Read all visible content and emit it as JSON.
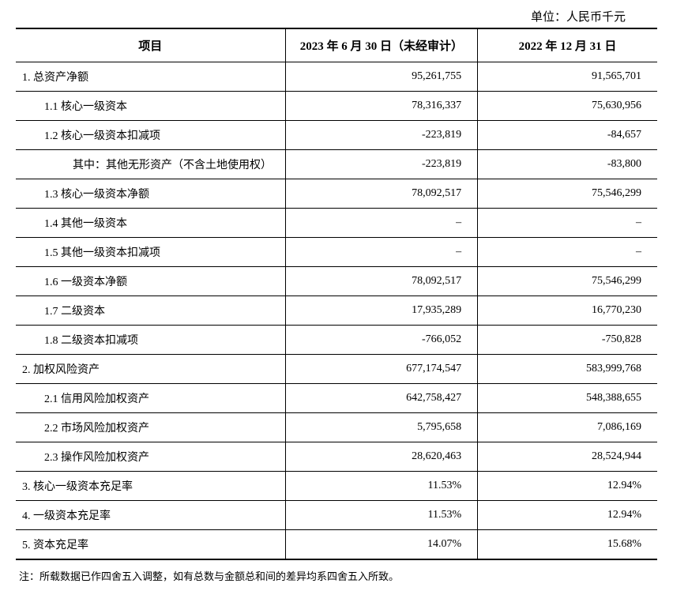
{
  "unit_label": "单位：人民币千元",
  "columns": {
    "item": "项目",
    "col_a": "2023 年 6 月 30 日（未经审计）",
    "col_b": "2022 年 12 月 31 日"
  },
  "rows": [
    {
      "label": "1. 总资产净额",
      "indent": 0,
      "a": "95,261,755",
      "b": "91,565,701"
    },
    {
      "label": "1.1 核心一级资本",
      "indent": 1,
      "a": "78,316,337",
      "b": "75,630,956"
    },
    {
      "label": "1.2 核心一级资本扣减项",
      "indent": 1,
      "a": "-223,819",
      "b": "-84,657"
    },
    {
      "label": "其中：其他无形资产（不含土地使用权）",
      "indent": 2,
      "a": "-223,819",
      "b": "-83,800"
    },
    {
      "label": "1.3 核心一级资本净额",
      "indent": 1,
      "a": "78,092,517",
      "b": "75,546,299"
    },
    {
      "label": "1.4 其他一级资本",
      "indent": 1,
      "a": "–",
      "b": "–"
    },
    {
      "label": "1.5 其他一级资本扣减项",
      "indent": 1,
      "a": "–",
      "b": "–"
    },
    {
      "label": "1.6 一级资本净额",
      "indent": 1,
      "a": "78,092,517",
      "b": "75,546,299"
    },
    {
      "label": "1.7 二级资本",
      "indent": 1,
      "a": "17,935,289",
      "b": "16,770,230"
    },
    {
      "label": "1.8 二级资本扣减项",
      "indent": 1,
      "a": "-766,052",
      "b": "-750,828"
    },
    {
      "label": "2. 加权风险资产",
      "indent": 0,
      "a": "677,174,547",
      "b": "583,999,768"
    },
    {
      "label": "2.1 信用风险加权资产",
      "indent": 1,
      "a": "642,758,427",
      "b": "548,388,655"
    },
    {
      "label": "2.2 市场风险加权资产",
      "indent": 1,
      "a": "5,795,658",
      "b": "7,086,169"
    },
    {
      "label": "2.3 操作风险加权资产",
      "indent": 1,
      "a": "28,620,463",
      "b": "28,524,944"
    },
    {
      "label": "3. 核心一级资本充足率",
      "indent": 0,
      "a": "11.53%",
      "b": "12.94%"
    },
    {
      "label": "4. 一级资本充足率",
      "indent": 0,
      "a": "11.53%",
      "b": "12.94%"
    },
    {
      "label": "5. 资本充足率",
      "indent": 0,
      "a": "14.07%",
      "b": "15.68%"
    }
  ],
  "footnote": "注：所载数据已作四舍五入调整，如有总数与金额总和间的差异均系四舍五入所致。"
}
